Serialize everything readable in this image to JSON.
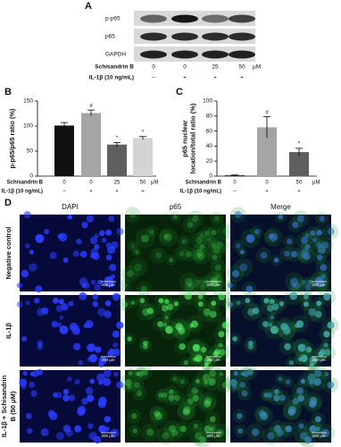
{
  "panel_labels": [
    "A",
    "B",
    "C",
    "D"
  ],
  "blot": {
    "rows": [
      "p-p65",
      "p65",
      "GAPDH"
    ],
    "treatment_labels": [
      "Schisandrin B",
      "IL-1β (10 ng/mL)"
    ],
    "schisandrin_doses": [
      "0",
      "0",
      "25",
      "50"
    ],
    "dose_unit": "μM",
    "il1b": [
      "–",
      "+",
      "+",
      "+"
    ]
  },
  "chart_data": [
    {
      "type": "bar",
      "ylabel": [
        "p-p65/p65 ratio (%)"
      ],
      "treatment_labels": [
        "Schisandrin B",
        "IL-1β (10 ng/mL)"
      ],
      "schisandrin_doses": [
        "0",
        "0",
        "25",
        "50"
      ],
      "dose_unit": "μM",
      "il1b": [
        "–",
        "+",
        "+",
        "+"
      ],
      "values": [
        101,
        126,
        63,
        76
      ],
      "errors": [
        6,
        6,
        4,
        3
      ],
      "annotations": [
        null,
        "#",
        "*",
        "*"
      ],
      "colors": [
        "#111111",
        "#a5a5a8",
        "#5f5f60",
        "#d4d4d4"
      ],
      "ylim": [
        0,
        150
      ],
      "yticks": [
        0,
        50,
        100,
        150
      ]
    },
    {
      "type": "bar",
      "ylabel": [
        "p65 nuclear",
        "location/total ratio (%)"
      ],
      "treatment_labels": [
        "Schisandrin B",
        "IL-1β (10 ng/mL)"
      ],
      "schisandrin_doses": [
        "0",
        "0",
        "50"
      ],
      "dose_unit": "μM",
      "il1b": [
        "–",
        "+",
        "+"
      ],
      "values": [
        1,
        65,
        32
      ],
      "errors": [
        0.5,
        14,
        5
      ],
      "annotations": [
        null,
        "#",
        "*"
      ],
      "colors": [
        "#111111",
        "#a5a5a8",
        "#5f5f60"
      ],
      "ylim": [
        0,
        100
      ],
      "yticks": [
        0,
        20,
        40,
        60,
        80,
        100
      ]
    }
  ],
  "microscopy": {
    "columns": [
      "DAPI",
      "p65",
      "Merge"
    ],
    "column_colors": [
      "#2233cc",
      "#22aa22",
      "#333333"
    ],
    "rows": [
      [
        "Negative control"
      ],
      [
        "IL-1β"
      ],
      [
        "IL-1β + Schisandrin",
        "B (50 μM)"
      ]
    ],
    "scale_bar": "200 μm"
  }
}
